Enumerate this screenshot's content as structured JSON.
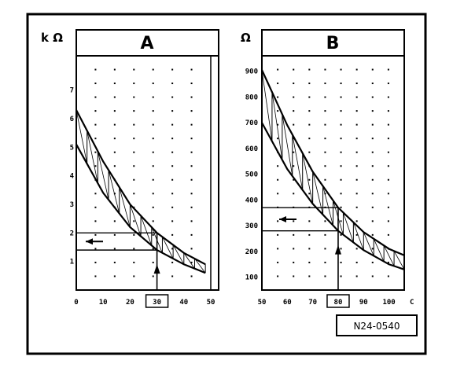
{
  "figure": {
    "reference": "N24-0540",
    "panels": [
      {
        "id": "A",
        "title": "A",
        "unit": "k Ω",
        "y_ticks": [
          "1",
          "2",
          "3",
          "4",
          "5",
          "6",
          "7"
        ],
        "x_ticks": [
          "0",
          "10",
          "20",
          "30",
          "40",
          "50"
        ],
        "highlight_x": "30",
        "curve_upper": [
          [
            0,
            6.3
          ],
          [
            10,
            4.5
          ],
          [
            20,
            3.0
          ],
          [
            30,
            2.0
          ],
          [
            40,
            1.3
          ],
          [
            48,
            0.9
          ]
        ],
        "curve_lower": [
          [
            0,
            5.1
          ],
          [
            10,
            3.4
          ],
          [
            20,
            2.2
          ],
          [
            30,
            1.4
          ],
          [
            40,
            0.9
          ],
          [
            48,
            0.6
          ]
        ],
        "reading_x": 30,
        "reading_band": [
          1.4,
          2.0
        ]
      },
      {
        "id": "B",
        "title": "B",
        "unit": "Ω",
        "x_unit": "C",
        "y_ticks": [
          "100",
          "200",
          "300",
          "400",
          "500",
          "600",
          "700",
          "800",
          "900"
        ],
        "x_ticks": [
          "50",
          "60",
          "70",
          "80",
          "90",
          "100"
        ],
        "highlight_x": "80",
        "curve_upper": [
          [
            50,
            905
          ],
          [
            60,
            690
          ],
          [
            70,
            510
          ],
          [
            80,
            370
          ],
          [
            90,
            275
          ],
          [
            100,
            210
          ],
          [
            106,
            185
          ]
        ],
        "curve_lower": [
          [
            50,
            700
          ],
          [
            60,
            520
          ],
          [
            70,
            385
          ],
          [
            80,
            280
          ],
          [
            90,
            205
          ],
          [
            100,
            150
          ],
          [
            106,
            130
          ]
        ],
        "reading_x": 80,
        "reading_band": [
          280,
          370
        ]
      }
    ]
  }
}
